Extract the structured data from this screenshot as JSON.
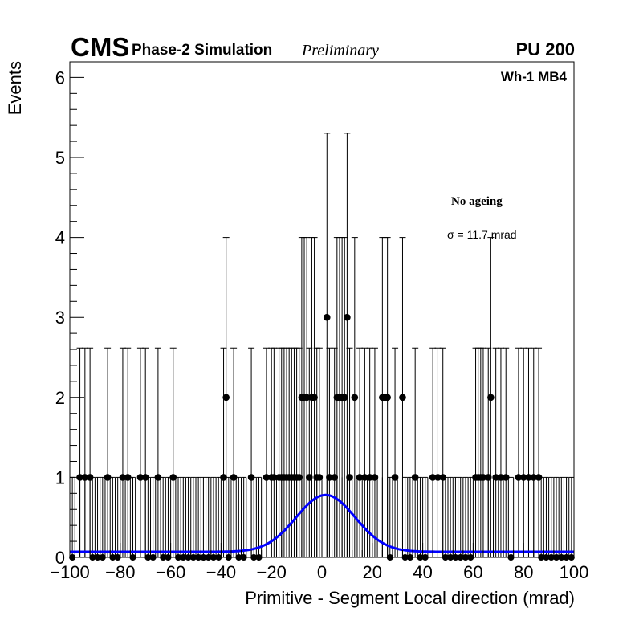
{
  "header": {
    "experiment": "CMS",
    "subtitle": "Phase-2 Simulation",
    "status": "Preliminary",
    "pileup": "PU 200"
  },
  "annotations": {
    "region": "Wh-1 MB4",
    "ageing": "No ageing",
    "sigma": "σ = 11.7 mrad"
  },
  "colors": {
    "data": "#000000",
    "fit": "#0000ff"
  },
  "chart_data": {
    "type": "scatter",
    "xlabel": "Primitive - Segment Local direction (mrad)",
    "ylabel": "Events",
    "xlim": [
      -100,
      100
    ],
    "ylim": [
      0,
      6.2
    ],
    "x_ticks": [
      -100,
      -80,
      -60,
      -40,
      -20,
      0,
      20,
      40,
      60,
      80,
      100
    ],
    "x_tick_labels": [
      "−100",
      "−80",
      "−60",
      "−40",
      "−20",
      "0",
      "20",
      "40",
      "60",
      "80",
      "100"
    ],
    "y_ticks": [
      0,
      1,
      2,
      3,
      4,
      5,
      6
    ],
    "y_tick_labels": [
      "0",
      "1",
      "2",
      "3",
      "4",
      "5",
      "6"
    ],
    "series": [
      {
        "kind": "points_with_errors",
        "x": [
          -96,
          -94,
          -92,
          -85,
          -79,
          -77,
          -72,
          -70,
          -65,
          -59,
          -39,
          -38,
          -35,
          -28,
          -22,
          -20,
          -19,
          -17,
          -16,
          -15,
          -14,
          -13,
          -12,
          -11,
          -10,
          -9,
          -8,
          -7,
          -6,
          -5,
          -4,
          -3,
          -2,
          -1,
          2,
          3,
          5,
          6,
          7,
          8,
          9,
          10,
          11,
          13,
          15,
          17,
          19,
          21,
          24,
          25,
          26,
          29,
          32,
          37,
          44,
          46,
          48,
          61,
          62,
          63,
          64,
          66,
          67,
          69,
          71,
          73,
          78,
          80,
          82,
          84,
          86
        ],
        "y": [
          1,
          1,
          1,
          1,
          1,
          1,
          1,
          1,
          1,
          1,
          1,
          2,
          1,
          1,
          1,
          1,
          1,
          1,
          1,
          1,
          1,
          1,
          1,
          1,
          1,
          1,
          2,
          2,
          2,
          1,
          2,
          2,
          1,
          1,
          3,
          1,
          1,
          2,
          2,
          2,
          2,
          3,
          1,
          2,
          1,
          1,
          1,
          1,
          2,
          2,
          2,
          1,
          2,
          1,
          1,
          1,
          1,
          1,
          1,
          1,
          1,
          1,
          2,
          1,
          1,
          1,
          1,
          1,
          1,
          1,
          1
        ]
      },
      {
        "kind": "fit",
        "function": "gaussian_plus_constant",
        "mean": 1.5,
        "sigma": 11.7,
        "amplitude": 0.71,
        "constant": 0.07,
        "x_range": [
          -100,
          100
        ]
      }
    ]
  }
}
